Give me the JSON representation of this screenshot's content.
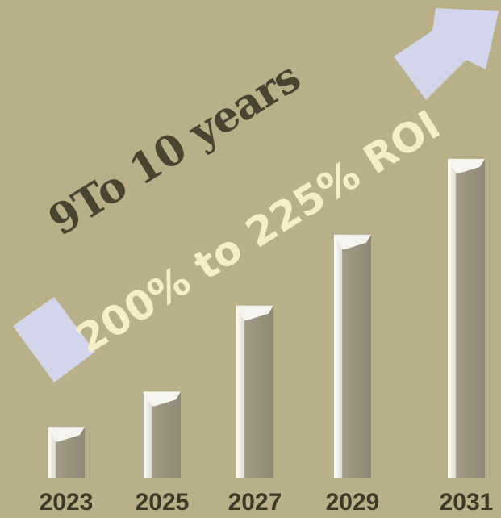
{
  "headline": {
    "duration": "9To 10 years",
    "roi": "200% to 225% ROI"
  },
  "colors": {
    "background": "#b9b08a",
    "bar_face": "#9b9480",
    "bar_highlight": "#f6f4ee",
    "arrow": "#d3d5ea",
    "duration_text": "#4a4332",
    "roi_text": "#f4efc4",
    "tick_text": "#3e3826"
  },
  "chart_data": {
    "type": "bar",
    "categories": [
      "2023",
      "2025",
      "2027",
      "2029",
      "2031"
    ],
    "values": [
      1,
      1.7,
      3.4,
      4.8,
      6.3
    ],
    "ylim": [
      0,
      6.6
    ],
    "grid": false,
    "legend": "none"
  }
}
